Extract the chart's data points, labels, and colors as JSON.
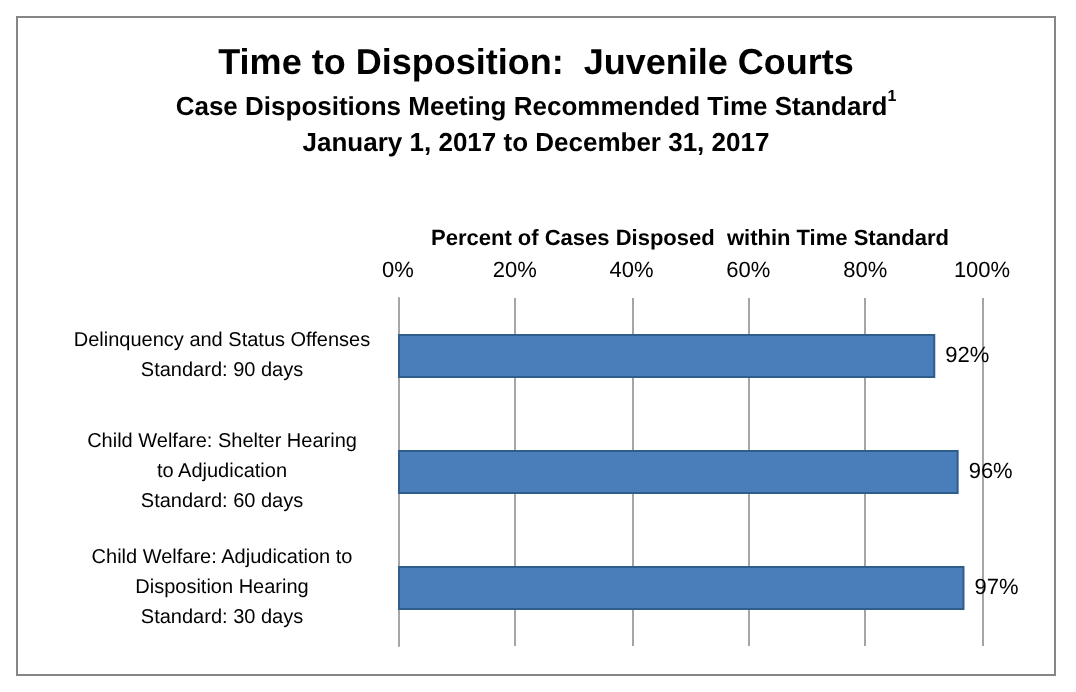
{
  "chart_data": {
    "type": "bar",
    "orientation": "horizontal",
    "title": "Time to Disposition:  Juvenile Courts",
    "subtitle": "Case Dispositions Meeting Recommended Time Standard$^{1}$\nJanuary 1, 2017 to December 31, 2017",
    "xlabel": "Percent of Cases Disposed  within Time Standard",
    "categories": [
      "Delinquency and Status Offenses\nStandard: 90 days",
      "Child Welfare: Shelter Hearing\nto Adjudication\nStandard: 60 days",
      "Child Welfare: Adjudication to\nDisposition Hearing\nStandard: 30 days"
    ],
    "values": [
      92,
      96,
      97
    ],
    "value_labels": [
      "92%",
      "96%",
      "97%"
    ],
    "color": "#4a7ebb",
    "xlim": [
      0,
      100
    ],
    "xticks": [
      {
        "value": 0,
        "label": "0%"
      },
      {
        "value": 20,
        "label": "20%"
      },
      {
        "value": 40,
        "label": "40%"
      },
      {
        "value": 60,
        "label": "60%"
      },
      {
        "value": 80,
        "label": "80%"
      },
      {
        "value": 100,
        "label": "100%"
      }
    ],
    "grid": true
  }
}
